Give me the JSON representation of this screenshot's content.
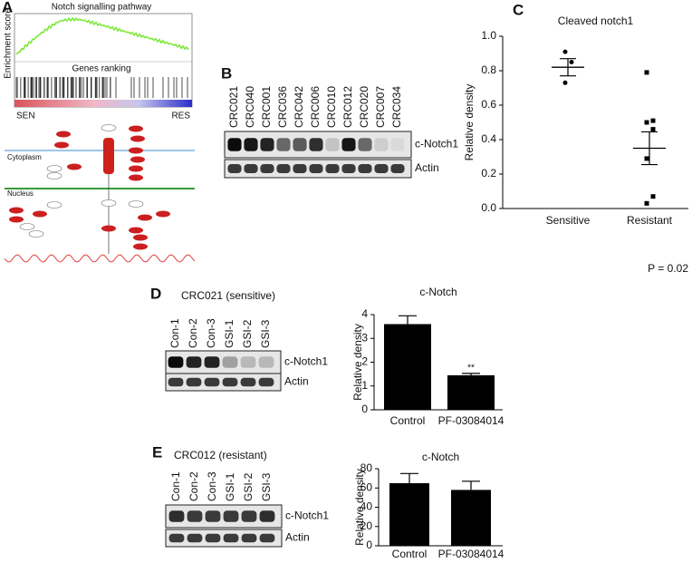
{
  "panels": {
    "a": {
      "label": "A",
      "gsea_title": "Notch signalling pathway",
      "y_label": "Enrichment score",
      "ranking_label": "Genes ranking",
      "left_end": "SEN",
      "right_end": "RES",
      "cytoplasm": "Cytoplasm",
      "nucleus": "Nucleus"
    },
    "b": {
      "label": "B",
      "lanes": [
        "CRC021",
        "CRC040",
        "CRC001",
        "CRC036",
        "CRC042",
        "CRC006",
        "CRC010",
        "CRC012",
        "CRC020",
        "CRC007",
        "CRC034"
      ],
      "bands": [
        "c-Notch1",
        "Actin"
      ]
    },
    "c": {
      "label": "C"
    },
    "d": {
      "label": "D",
      "sample": "CRC021 (sensitive)",
      "lanes": [
        "Con-1",
        "Con-2",
        "Con-3",
        "GSI-1",
        "GSI-2",
        "GSI-3"
      ],
      "bands": [
        "c-Notch1",
        "Actin"
      ]
    },
    "e": {
      "label": "E",
      "sample": "CRC012 (resistant)",
      "lanes": [
        "Con-1",
        "Con-2",
        "Con-3",
        "GSI-1",
        "GSI-2",
        "GSI-3"
      ],
      "bands": [
        "c-Notch1",
        "Actin"
      ]
    }
  },
  "chart_data": [
    {
      "type": "scatter",
      "title": "Cleaved notch1",
      "y_label": "Relative density",
      "categories": [
        "Sensitive",
        "Resistant"
      ],
      "points": [
        [
          0.91,
          0.85,
          0.73
        ],
        [
          0.79,
          0.51,
          0.5,
          0.46,
          0.29,
          0.07,
          0.03
        ]
      ],
      "means": [
        0.82,
        0.35
      ],
      "errors": [
        0.05,
        0.095
      ],
      "ylim": [
        0,
        1
      ],
      "yticks": [
        {
          "value": 0,
          "label": "0.0"
        },
        0.2,
        0.4,
        0.6,
        0.8,
        {
          "value": 1,
          "label": "1.0"
        }
      ],
      "annotation": "P = 0.02",
      "color": "#000000"
    },
    {
      "type": "bar",
      "title": "c-Notch",
      "y_label": "Relative density",
      "categories": [
        "Control",
        "PF-03084014"
      ],
      "values": [
        3.6,
        1.45
      ],
      "errors": [
        0.35,
        0.08
      ],
      "ylim": [
        0,
        4
      ],
      "yticks": [
        0,
        1,
        2,
        3,
        4
      ],
      "significance": {
        "category": "PF-03084014",
        "label": "**"
      },
      "color": "#000000"
    },
    {
      "type": "bar",
      "title": "c-Notch",
      "y_label": "Relative density",
      "categories": [
        "Control",
        "PF-03084014"
      ],
      "values": [
        65,
        58
      ],
      "errors": [
        10,
        9
      ],
      "ylim": [
        0,
        80
      ],
      "yticks": [
        0,
        20,
        40,
        60,
        80
      ],
      "color": "#000000"
    }
  ]
}
